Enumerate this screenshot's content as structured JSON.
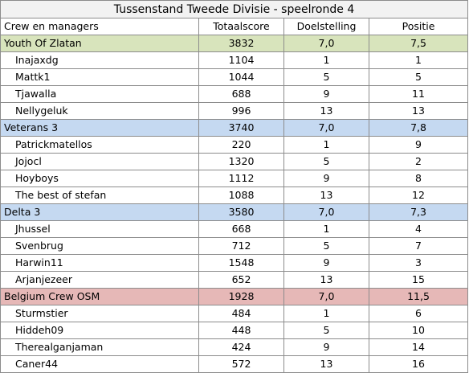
{
  "title": "Tussenstand Tweede Divisie - speelronde 4",
  "headers": [
    "Crew en managers",
    "Totaalscore",
    "Doelstelling",
    "Positie"
  ],
  "teams": [
    {
      "name": "Youth Of Zlatan",
      "score": "3832",
      "goal": "7,0",
      "position": "7,5",
      "color": "#d8e4bc",
      "managers": [
        {
          "name": "Inajaxdg",
          "score": "1104",
          "goal": "1",
          "position": "1"
        },
        {
          "name": "Mattk1",
          "score": "1044",
          "goal": "5",
          "position": "5"
        },
        {
          "name": "Tjawalla",
          "score": "688",
          "goal": "9",
          "position": "11"
        },
        {
          "name": "Nellygeluk",
          "score": "996",
          "goal": "13",
          "position": "13"
        }
      ]
    },
    {
      "name": "Veterans 3",
      "score": "3740",
      "goal": "7,0",
      "position": "7,8",
      "color": "#c5d9f1",
      "managers": [
        {
          "name": "Patrickmatellos",
          "score": "220",
          "goal": "1",
          "position": "9"
        },
        {
          "name": "Jojocl",
          "score": "1320",
          "goal": "5",
          "position": "2"
        },
        {
          "name": "Hoyboys",
          "score": "1112",
          "goal": "9",
          "position": "8"
        },
        {
          "name": "The best of stefan",
          "score": "1088",
          "goal": "13",
          "position": "12"
        }
      ]
    },
    {
      "name": "Delta 3",
      "score": "3580",
      "goal": "7,0",
      "position": "7,3",
      "color": "#c5d9f1",
      "managers": [
        {
          "name": "Jhussel",
          "score": "668",
          "goal": "1",
          "position": "4"
        },
        {
          "name": "Svenbrug",
          "score": "712",
          "goal": "5",
          "position": "7"
        },
        {
          "name": "Harwin11",
          "score": "1548",
          "goal": "9",
          "position": "3"
        },
        {
          "name": "Arjanjezeer",
          "score": "652",
          "goal": "13",
          "position": "15"
        }
      ]
    },
    {
      "name": "Belgium Crew OSM",
      "score": "1928",
      "goal": "7,0",
      "position": "11,5",
      "color": "#e6b8b7",
      "managers": [
        {
          "name": "Sturmstier",
          "score": "484",
          "goal": "1",
          "position": "6"
        },
        {
          "name": "Hiddeh09",
          "score": "448",
          "goal": "5",
          "position": "10"
        },
        {
          "name": "Therealganjaman",
          "score": "424",
          "goal": "9",
          "position": "14"
        },
        {
          "name": "Caner44",
          "score": "572",
          "goal": "13",
          "position": "16"
        }
      ]
    }
  ]
}
